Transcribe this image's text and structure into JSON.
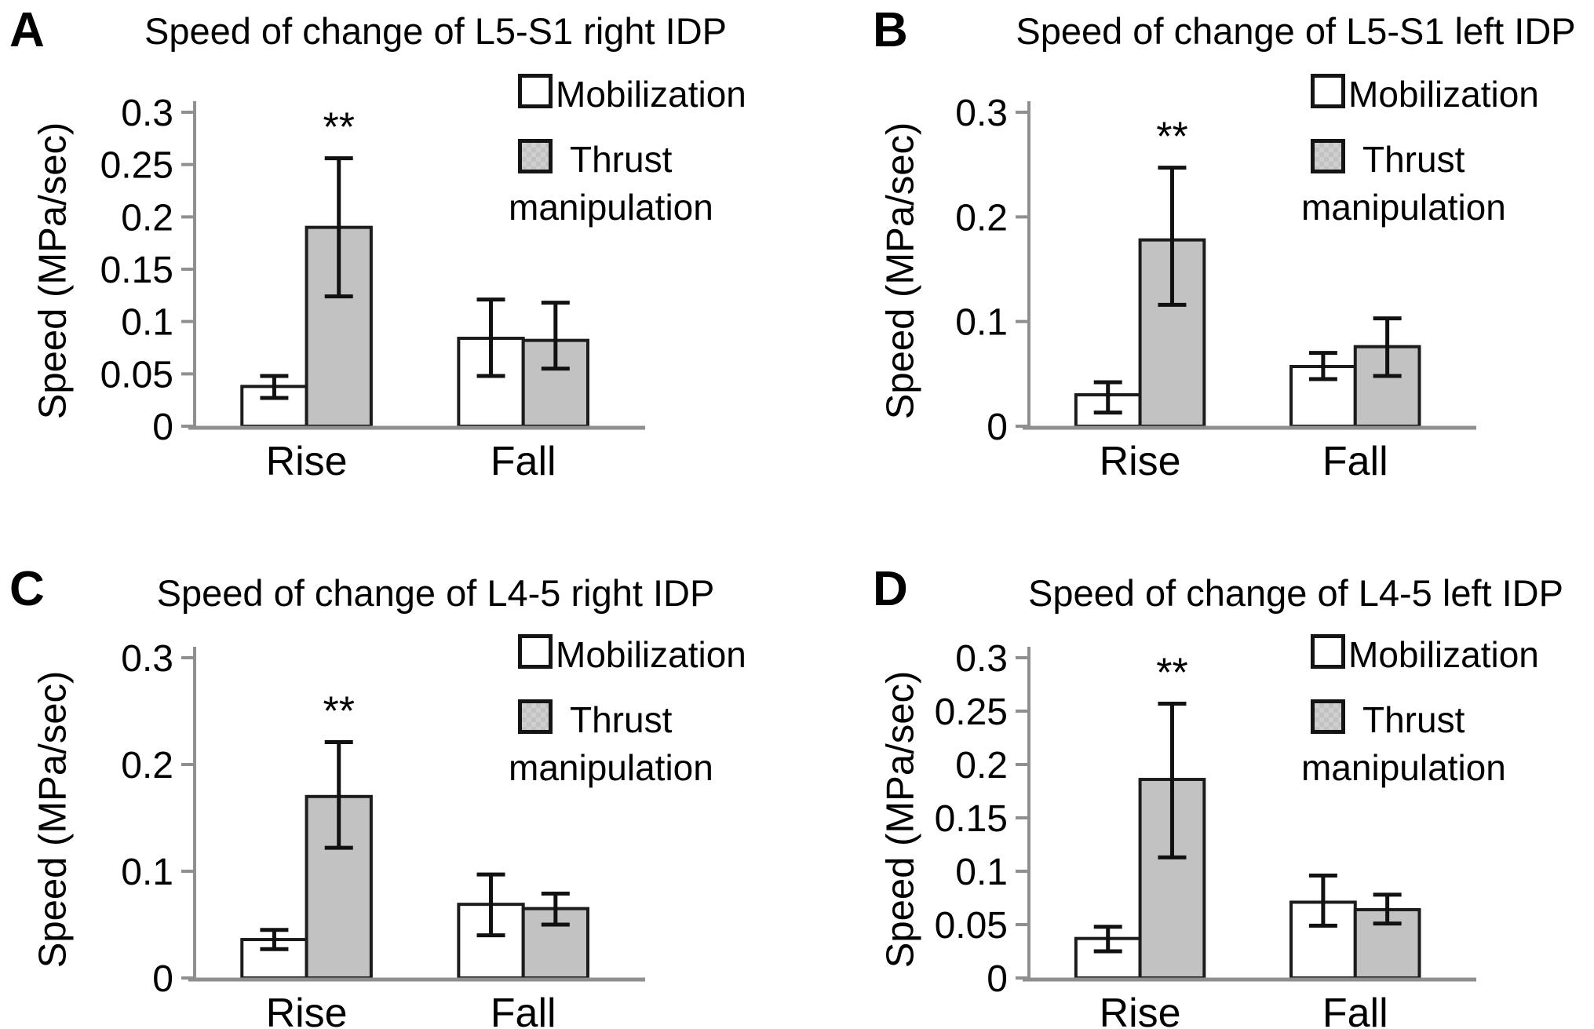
{
  "figure": {
    "background": "#ffffff",
    "text_color": "#000000",
    "legend": {
      "mobilization": "Mobilization",
      "thrust_line1": "Thrust",
      "thrust_line2": "manipulation"
    },
    "colors": {
      "mobilization_fill": "#ffffff",
      "thrust_fill": "#c2c2c2",
      "bar_stroke": "#1c1c1c",
      "axis": "#8f8f8f",
      "error_bar": "#111111"
    }
  },
  "chart_data": [
    {
      "panel": "A",
      "type": "bar",
      "title": "Speed of change of L5-S1 right IDP",
      "ylabel": "Speed (MPa/sec)",
      "ylim": [
        0,
        0.3
      ],
      "yticks": [
        0,
        0.05,
        0.1,
        0.15,
        0.2,
        0.25,
        0.3
      ],
      "categories": [
        "Rise",
        "Fall"
      ],
      "legend_position": "upper-right",
      "grid": false,
      "series": [
        {
          "name": "Mobilization",
          "values": [
            0.038,
            0.084
          ],
          "err_low": [
            0.027,
            0.048
          ],
          "err_high": [
            0.048,
            0.121
          ]
        },
        {
          "name": "Thrust manipulation",
          "values": [
            0.19,
            0.082
          ],
          "err_low": [
            0.124,
            0.055
          ],
          "err_high": [
            0.256,
            0.118
          ]
        }
      ],
      "significance": [
        {
          "category": "Rise",
          "series": "Thrust manipulation",
          "label": "**"
        }
      ]
    },
    {
      "panel": "B",
      "type": "bar",
      "title": "Speed of change of L5-S1 left IDP",
      "ylabel": "Speed (MPa/sec)",
      "ylim": [
        0,
        0.3
      ],
      "yticks": [
        0,
        0.1,
        0.2,
        0.3
      ],
      "categories": [
        "Rise",
        "Fall"
      ],
      "legend_position": "upper-right",
      "grid": false,
      "series": [
        {
          "name": "Mobilization",
          "values": [
            0.03,
            0.057
          ],
          "err_low": [
            0.013,
            0.045
          ],
          "err_high": [
            0.042,
            0.07
          ]
        },
        {
          "name": "Thrust manipulation",
          "values": [
            0.178,
            0.076
          ],
          "err_low": [
            0.116,
            0.048
          ],
          "err_high": [
            0.247,
            0.103
          ]
        }
      ],
      "significance": [
        {
          "category": "Rise",
          "series": "Thrust manipulation",
          "label": "**"
        }
      ]
    },
    {
      "panel": "C",
      "type": "bar",
      "title": "Speed of change of L4-5 right IDP",
      "ylabel": "Speed (MPa/sec)",
      "ylim": [
        0,
        0.3
      ],
      "yticks": [
        0,
        0.1,
        0.2,
        0.3
      ],
      "categories": [
        "Rise",
        "Fall"
      ],
      "legend_position": "upper-right",
      "grid": false,
      "series": [
        {
          "name": "Mobilization",
          "values": [
            0.036,
            0.069
          ],
          "err_low": [
            0.027,
            0.04
          ],
          "err_high": [
            0.045,
            0.097
          ]
        },
        {
          "name": "Thrust manipulation",
          "values": [
            0.17,
            0.065
          ],
          "err_low": [
            0.122,
            0.05
          ],
          "err_high": [
            0.221,
            0.079
          ]
        }
      ],
      "significance": [
        {
          "category": "Rise",
          "series": "Thrust manipulation",
          "label": "**"
        }
      ]
    },
    {
      "panel": "D",
      "type": "bar",
      "title": "Speed of change of L4-5 left IDP",
      "ylabel": "Speed (MPa/sec)",
      "ylim": [
        0,
        0.3
      ],
      "yticks": [
        0,
        0.05,
        0.1,
        0.15,
        0.2,
        0.25,
        0.3
      ],
      "categories": [
        "Rise",
        "Fall"
      ],
      "legend_position": "upper-right",
      "grid": false,
      "series": [
        {
          "name": "Mobilization",
          "values": [
            0.037,
            0.071
          ],
          "err_low": [
            0.025,
            0.049
          ],
          "err_high": [
            0.048,
            0.096
          ]
        },
        {
          "name": "Thrust manipulation",
          "values": [
            0.186,
            0.064
          ],
          "err_low": [
            0.113,
            0.051
          ],
          "err_high": [
            0.257,
            0.078
          ]
        }
      ],
      "significance": [
        {
          "category": "Rise",
          "series": "Thrust manipulation",
          "label": "**"
        }
      ]
    }
  ]
}
